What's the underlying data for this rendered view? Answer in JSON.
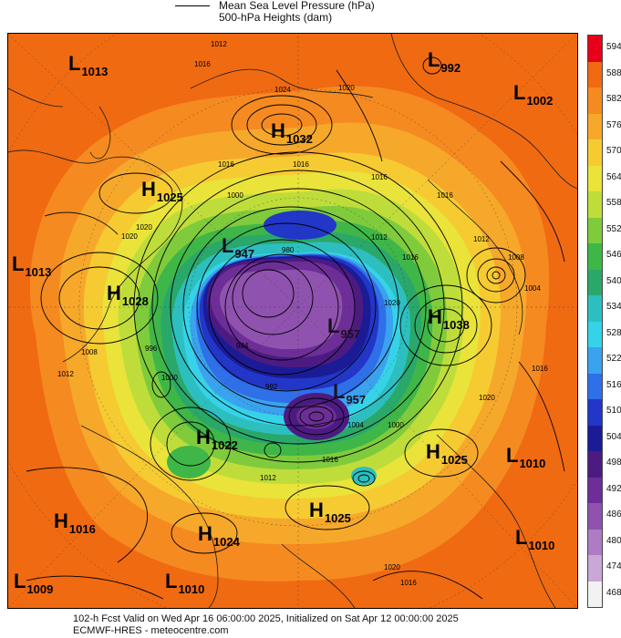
{
  "legend": {
    "line1": "Mean Sea Level Pressure (hPa)",
    "line2": "500-hPa Heights (dam)"
  },
  "footer": {
    "line1": "102-h Fcst Valid on Wed Apr 16 06:00:00 2025, Initialized on Sat Apr 12 00:00:00 2025",
    "line2": "ECMWF-HRES   - meteocentre.com"
  },
  "scale": {
    "levels": [
      "594",
      "588",
      "582",
      "576",
      "570",
      "564",
      "558",
      "552",
      "546",
      "540",
      "534",
      "528",
      "522",
      "516",
      "510",
      "504",
      "498",
      "492",
      "486",
      "480",
      "474",
      "468"
    ],
    "colors": [
      "#e8001a",
      "#f06a12",
      "#f58a20",
      "#f6a82a",
      "#f6cb32",
      "#e9e33a",
      "#bfdd3a",
      "#7fcb3c",
      "#3fb648",
      "#2aa86a",
      "#2dbfbf",
      "#36d3e8",
      "#3aa2ee",
      "#2f6fe8",
      "#2236c8",
      "#1b1b96",
      "#4b1b82",
      "#6d2e98",
      "#8f52ae",
      "#ad7cc2",
      "#c9a7d6",
      "#f2f2f2"
    ]
  },
  "systems": [
    {
      "type": "L",
      "value": "1013"
    },
    {
      "type": "L",
      "value": "992"
    },
    {
      "type": "L",
      "value": "1002"
    },
    {
      "type": "H",
      "value": "1032"
    },
    {
      "type": "H",
      "value": "1025"
    },
    {
      "type": "L",
      "value": "1013"
    },
    {
      "type": "H",
      "value": "1028"
    },
    {
      "type": "L",
      "value": "947"
    },
    {
      "type": "L",
      "value": "957"
    },
    {
      "type": "L",
      "value": "957"
    },
    {
      "type": "H",
      "value": "1038"
    },
    {
      "type": "H",
      "value": "1022"
    },
    {
      "type": "H",
      "value": "1025"
    },
    {
      "type": "L",
      "value": "1010"
    },
    {
      "type": "H",
      "value": "1016"
    },
    {
      "type": "H",
      "value": "1025"
    },
    {
      "type": "H",
      "value": "1024"
    },
    {
      "type": "L",
      "value": "1010"
    },
    {
      "type": "L",
      "value": "1009"
    },
    {
      "type": "L",
      "value": "1010"
    }
  ],
  "isobar_labels": [
    "1012",
    "1016",
    "1024",
    "1020",
    "1016",
    "1016",
    "1016",
    "1000",
    "1020",
    "1012",
    "1008",
    "1004",
    "1016",
    "1020",
    "1016",
    "1012",
    "996",
    "1000",
    "992",
    "984",
    "980",
    "1004",
    "1000",
    "1016",
    "1012",
    "1020",
    "1016",
    "1020",
    "1008",
    "1012",
    "1016",
    "1020"
  ]
}
